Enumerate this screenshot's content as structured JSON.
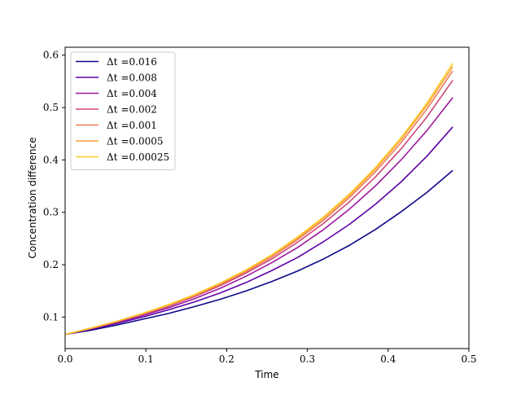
{
  "chart_data": {
    "type": "line",
    "title": "",
    "xlabel": "Time",
    "ylabel": "Concentration difference",
    "xlim": [
      0,
      0.5
    ],
    "ylim": [
      0.04,
      0.615
    ],
    "xticks": [
      0,
      0.1,
      0.2,
      0.3,
      0.4,
      0.5
    ],
    "xtick_labels": [
      "0.0",
      "0.1",
      "0.2",
      "0.3",
      "0.4",
      "0.5"
    ],
    "yticks": [
      0.1,
      0.2,
      0.3,
      0.4,
      0.5,
      0.6
    ],
    "ytick_labels": [
      "0.1",
      "0.2",
      "0.3",
      "0.4",
      "0.5",
      "0.6"
    ],
    "grid": false,
    "legend_position": "top-left",
    "series": [
      {
        "name": "Δt =0.016",
        "label_prefix": "Δt",
        "label_value": "=0.016",
        "color": "#0d0887",
        "x": [
          0,
          0.032,
          0.064,
          0.096,
          0.128,
          0.16,
          0.192,
          0.224,
          0.256,
          0.288,
          0.32,
          0.352,
          0.384,
          0.416,
          0.448,
          0.48
        ],
        "y": [
          0.067,
          0.075,
          0.085,
          0.096,
          0.107,
          0.12,
          0.134,
          0.15,
          0.168,
          0.188,
          0.211,
          0.237,
          0.267,
          0.301,
          0.338,
          0.38
        ]
      },
      {
        "name": "Δt =0.008",
        "label_prefix": "Δt",
        "label_value": "=0.008",
        "color": "#5c01a6",
        "x": [
          0,
          0.032,
          0.064,
          0.096,
          0.128,
          0.16,
          0.192,
          0.224,
          0.256,
          0.288,
          0.32,
          0.352,
          0.384,
          0.416,
          0.448,
          0.48
        ],
        "y": [
          0.067,
          0.077,
          0.088,
          0.1,
          0.114,
          0.129,
          0.146,
          0.166,
          0.189,
          0.214,
          0.244,
          0.277,
          0.315,
          0.358,
          0.407,
          0.463
        ]
      },
      {
        "name": "Δt =0.004",
        "label_prefix": "Δt",
        "label_value": "=0.004",
        "color": "#9c179e",
        "x": [
          0,
          0.032,
          0.064,
          0.096,
          0.128,
          0.16,
          0.192,
          0.224,
          0.256,
          0.288,
          0.32,
          0.352,
          0.384,
          0.416,
          0.448,
          0.48
        ],
        "y": [
          0.067,
          0.078,
          0.09,
          0.103,
          0.118,
          0.135,
          0.155,
          0.178,
          0.204,
          0.233,
          0.267,
          0.306,
          0.35,
          0.4,
          0.456,
          0.519
        ]
      },
      {
        "name": "Δt =0.002",
        "label_prefix": "Δt",
        "label_value": "=0.002",
        "color": "#cc4778",
        "x": [
          0,
          0.032,
          0.064,
          0.096,
          0.128,
          0.16,
          0.192,
          0.224,
          0.256,
          0.288,
          0.32,
          0.352,
          0.384,
          0.416,
          0.448,
          0.48
        ],
        "y": [
          0.067,
          0.078,
          0.091,
          0.105,
          0.121,
          0.139,
          0.16,
          0.184,
          0.211,
          0.243,
          0.279,
          0.32,
          0.367,
          0.421,
          0.482,
          0.552
        ]
      },
      {
        "name": "Δt =0.001",
        "label_prefix": "Δt",
        "label_value": "=0.001",
        "color": "#ed7953",
        "x": [
          0,
          0.032,
          0.064,
          0.096,
          0.128,
          0.16,
          0.192,
          0.224,
          0.256,
          0.288,
          0.32,
          0.352,
          0.384,
          0.416,
          0.448,
          0.48
        ],
        "y": [
          0.067,
          0.079,
          0.092,
          0.106,
          0.122,
          0.141,
          0.162,
          0.187,
          0.215,
          0.248,
          0.285,
          0.328,
          0.377,
          0.433,
          0.497,
          0.57
        ]
      },
      {
        "name": "Δt =0.0005",
        "label_prefix": "Δt",
        "label_value": "=0.0005",
        "color": "#fb9f3a",
        "x": [
          0,
          0.032,
          0.064,
          0.096,
          0.128,
          0.16,
          0.192,
          0.224,
          0.256,
          0.288,
          0.32,
          0.352,
          0.384,
          0.416,
          0.448,
          0.48
        ],
        "y": [
          0.067,
          0.079,
          0.092,
          0.107,
          0.123,
          0.142,
          0.164,
          0.189,
          0.218,
          0.251,
          0.289,
          0.332,
          0.382,
          0.439,
          0.504,
          0.578
        ]
      },
      {
        "name": "Δt =0.00025",
        "label_prefix": "Δt",
        "label_value": "=0.00025",
        "color": "#fdca26",
        "x": [
          0,
          0.032,
          0.064,
          0.096,
          0.128,
          0.16,
          0.192,
          0.224,
          0.256,
          0.288,
          0.32,
          0.352,
          0.384,
          0.416,
          0.448,
          0.48
        ],
        "y": [
          0.067,
          0.079,
          0.092,
          0.107,
          0.124,
          0.143,
          0.165,
          0.19,
          0.219,
          0.253,
          0.291,
          0.335,
          0.385,
          0.442,
          0.508,
          0.584
        ]
      }
    ]
  }
}
